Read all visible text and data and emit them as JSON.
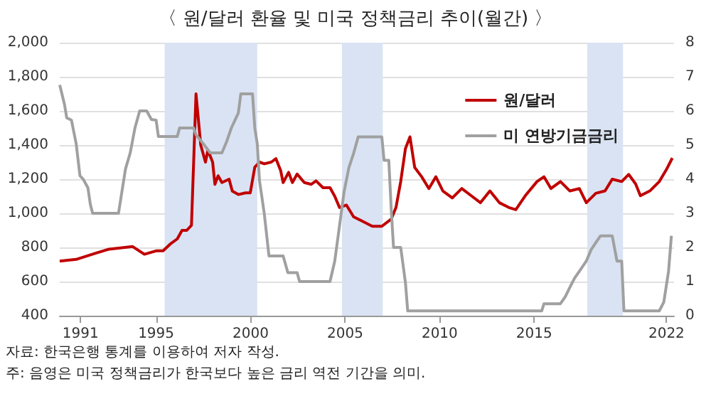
{
  "chart_data": {
    "type": "line",
    "title": "〈 원/달러 환율 및 미국 정책금리 추이(월간) 〉",
    "xlim": [
      1989.9,
      2022.4
    ],
    "xticks": [
      1991,
      1995,
      2000,
      2005,
      2010,
      2015,
      2022
    ],
    "ylim": [
      400,
      2000
    ],
    "yticks": [
      {
        "value": 400,
        "label": "400"
      },
      {
        "value": 600,
        "label": "600"
      },
      {
        "value": 800,
        "label": "800"
      },
      {
        "value": 1000,
        "label": "1,000"
      },
      {
        "value": 1200,
        "label": "1,200"
      },
      {
        "value": 1400,
        "label": "1,400"
      },
      {
        "value": 1600,
        "label": "1,600"
      },
      {
        "value": 1800,
        "label": "1,800"
      },
      {
        "value": 2000,
        "label": "2,000"
      }
    ],
    "y2lim": [
      0,
      8
    ],
    "y2ticks": [
      0,
      1,
      2,
      3,
      4,
      5,
      6,
      7,
      8
    ],
    "grid": "y",
    "legend": "top right",
    "marker": "none",
    "line_style": "solid",
    "bands": [
      {
        "axis": "x",
        "from": 1995.45,
        "to": 2000.35,
        "color": "#dae3f3"
      },
      {
        "axis": "x",
        "from": 2004.83,
        "to": 2006.99,
        "color": "#dae3f3"
      },
      {
        "axis": "x",
        "from": 2017.81,
        "to": 2019.7,
        "color": "#dae3f3"
      }
    ],
    "series": [
      {
        "name": "원/달러",
        "color": "#c00000",
        "type": "line",
        "x": [
          1989.9,
          1990.77,
          1991.77,
          1992.51,
          1993.76,
          1994.38,
          1995.0,
          1995.37,
          1995.75,
          1996.12,
          1996.37,
          1996.62,
          1996.87,
          1997.11,
          1997.36,
          1997.61,
          1997.74,
          1997.99,
          1998.11,
          1998.28,
          1998.48,
          1998.86,
          1999.03,
          1999.35,
          1999.73,
          1999.98,
          2000.22,
          2000.47,
          2000.72,
          2001.09,
          2001.34,
          2001.59,
          2001.72,
          2002.01,
          2002.21,
          2002.46,
          2002.84,
          2003.21,
          2003.46,
          2003.83,
          2004.2,
          2004.45,
          2004.7,
          2005.07,
          2005.45,
          2005.94,
          2006.44,
          2006.94,
          2007.44,
          2007.69,
          2007.94,
          2008.19,
          2008.43,
          2008.68,
          2009.05,
          2009.43,
          2009.8,
          2010.17,
          2010.67,
          2011.17,
          2011.67,
          2012.16,
          2012.66,
          2013.16,
          2013.66,
          2014.03,
          2014.53,
          2015.15,
          2015.52,
          2015.89,
          2016.39,
          2016.89,
          2017.39,
          2017.76,
          2018.26,
          2018.75,
          2019.13,
          2019.63,
          2020.0,
          2020.37,
          2020.62,
          2021.12,
          2021.62,
          2021.99,
          2022.31
        ],
        "values": [
          720,
          730,
          765,
          790,
          805,
          760,
          780,
          780,
          820,
          850,
          900,
          900,
          930,
          1700,
          1400,
          1300,
          1370,
          1300,
          1170,
          1220,
          1180,
          1200,
          1130,
          1110,
          1120,
          1120,
          1270,
          1300,
          1290,
          1300,
          1320,
          1250,
          1180,
          1240,
          1180,
          1230,
          1180,
          1170,
          1190,
          1150,
          1150,
          1100,
          1034,
          1048,
          979,
          952,
          924,
          924,
          966,
          1034,
          1186,
          1379,
          1448,
          1269,
          1214,
          1145,
          1214,
          1131,
          1090,
          1145,
          1103,
          1062,
          1131,
          1062,
          1034,
          1021,
          1103,
          1186,
          1214,
          1145,
          1186,
          1131,
          1145,
          1062,
          1117,
          1131,
          1200,
          1186,
          1228,
          1172,
          1103,
          1131,
          1186,
          1255,
          1324
        ]
      },
      {
        "name": "미 연방기금금리",
        "color": "#a0a0a0",
        "type": "line",
        "axis": "y2",
        "x": [
          1989.9,
          1990.15,
          1990.27,
          1990.52,
          1990.77,
          1990.97,
          1991.14,
          1991.39,
          1991.52,
          1991.64,
          1993.01,
          1993.38,
          1993.63,
          1993.88,
          1994.13,
          1994.5,
          1994.75,
          1995.0,
          1995.12,
          1996.12,
          1996.24,
          1996.99,
          1997.11,
          1997.49,
          1997.86,
          1998.48,
          1998.73,
          1998.98,
          1999.35,
          1999.48,
          2000.1,
          2000.22,
          2000.35,
          2000.47,
          2000.72,
          2000.97,
          2001.72,
          2001.97,
          2002.46,
          2002.59,
          2004.2,
          2004.45,
          2004.95,
          2005.2,
          2005.45,
          2005.69,
          2006.94,
          2007.06,
          2007.31,
          2007.44,
          2007.56,
          2007.94,
          2008.19,
          2008.31,
          2015.4,
          2015.52,
          2016.39,
          2016.64,
          2016.89,
          2017.14,
          2017.39,
          2017.76,
          2018.01,
          2018.26,
          2018.51,
          2019.13,
          2019.38,
          2019.63,
          2019.75,
          2021.62,
          2021.86,
          2022.11,
          2022.26
        ],
        "values": [
          6.76,
          6.2,
          5.8,
          5.73,
          5.04,
          4.1,
          4.0,
          3.75,
          3.26,
          3.0,
          3.0,
          4.3,
          4.77,
          5.5,
          6.0,
          6.0,
          5.75,
          5.73,
          5.25,
          5.25,
          5.5,
          5.5,
          5.3,
          5.04,
          4.77,
          4.77,
          5.1,
          5.5,
          5.94,
          6.5,
          6.5,
          5.5,
          5.04,
          3.95,
          3.0,
          1.75,
          1.75,
          1.26,
          1.26,
          1.0,
          1.0,
          1.6,
          3.65,
          4.34,
          4.76,
          5.24,
          5.24,
          4.55,
          4.55,
          3.1,
          2.0,
          2.0,
          0.97,
          0.14,
          0.14,
          0.35,
          0.35,
          0.55,
          0.83,
          1.1,
          1.3,
          1.6,
          1.93,
          2.14,
          2.34,
          2.34,
          1.6,
          1.6,
          0.14,
          0.14,
          0.4,
          1.3,
          2.34
        ]
      }
    ],
    "annotations": [
      "자료: 한국은행 통계를 이용하여 저자 작성.",
      "주: 음영은 미국 정책금리가 한국보다 높은 금리 역전 기간을 의미."
    ]
  }
}
